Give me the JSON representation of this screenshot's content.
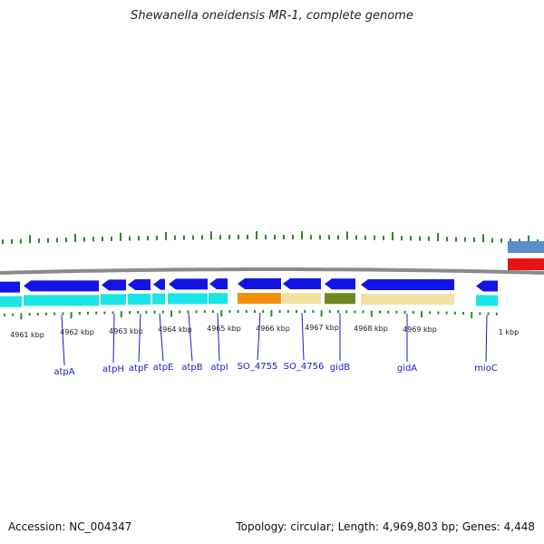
{
  "header": {
    "title": "Shewanella oneidensis MR-1, complete genome"
  },
  "footer": {
    "accession": "Accession: NC_004347",
    "topology": "Topology: circular; Length: 4,969,803 bp; Genes: 4,448"
  },
  "colors": {
    "cds": "#1414e6",
    "gene_track": "#19e6e6",
    "rna": "#f2900f",
    "pseudo": "#f0e3a0",
    "gidB_box": "#6b8a1f",
    "backbone": "#8a8a8a",
    "tick": "#2a8a2a",
    "label": "#1a1acc",
    "other_strand_top": "#5a8ec8",
    "other_strand_bottom": "#e61414"
  },
  "scale": {
    "labels": [
      "4961 kbp",
      "4962 kbp",
      "4963 kbp",
      "4964 kbp",
      "4965 kbp",
      "4966 kbp",
      "4967 kbp",
      "4968 kbp",
      "4969 kbp",
      "1 kbp"
    ]
  },
  "genes": [
    {
      "name": "atpA"
    },
    {
      "name": "atpH"
    },
    {
      "name": "atpF"
    },
    {
      "name": "atpE"
    },
    {
      "name": "atpB"
    },
    {
      "name": "atpI"
    },
    {
      "name": "SO_4755"
    },
    {
      "name": "SO_4756"
    },
    {
      "name": "gidB"
    },
    {
      "name": "gidA"
    },
    {
      "name": "mioC"
    }
  ]
}
